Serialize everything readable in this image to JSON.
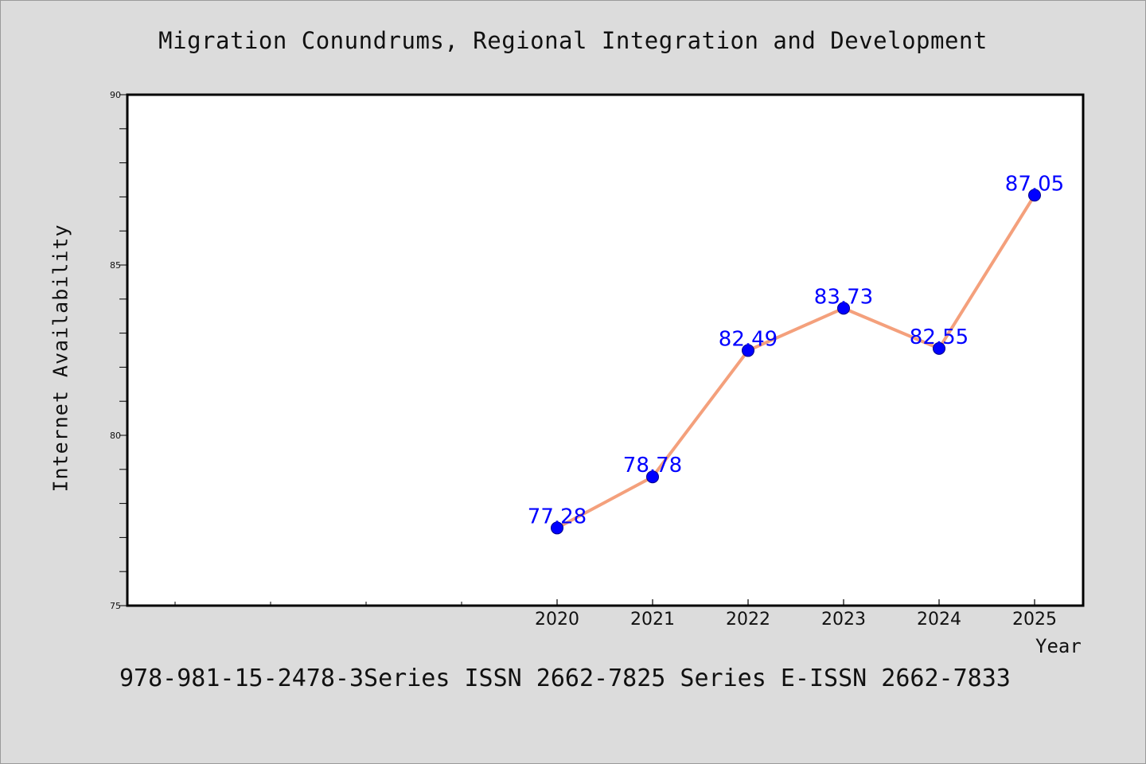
{
  "page": {
    "title": "Migration Conundrums, Regional Integration and Development",
    "footer": "978-981-15-2478-3Series ISSN 2662-7825 Series E-ISSN 2662-7833"
  },
  "colors": {
    "background": "#dcdcdc",
    "plot_background": "#ffffff",
    "line": "#f4a07c",
    "marker": "#0000ff",
    "data_label": "#0000ff"
  },
  "chart_data": {
    "type": "line",
    "title": "Migration Conundrums, Regional Integration and Development",
    "xlabel": "Year",
    "ylabel": "Internet Availability",
    "categories": [
      "2020",
      "2021",
      "2022",
      "2023",
      "2024",
      "2025"
    ],
    "series": [
      {
        "values": [
          77.28,
          78.78,
          82.49,
          83.73,
          82.55,
          87.05
        ]
      }
    ],
    "data_labels": [
      "77.28",
      "78.78",
      "82.49",
      "83.73",
      "82.55",
      "87.05"
    ],
    "ylim": [
      75,
      90
    ],
    "y_ticks": [
      75,
      80,
      85,
      90
    ],
    "y_minor_step": 1,
    "x_minor_tick_count": 4,
    "grid": false,
    "legend": "none"
  }
}
